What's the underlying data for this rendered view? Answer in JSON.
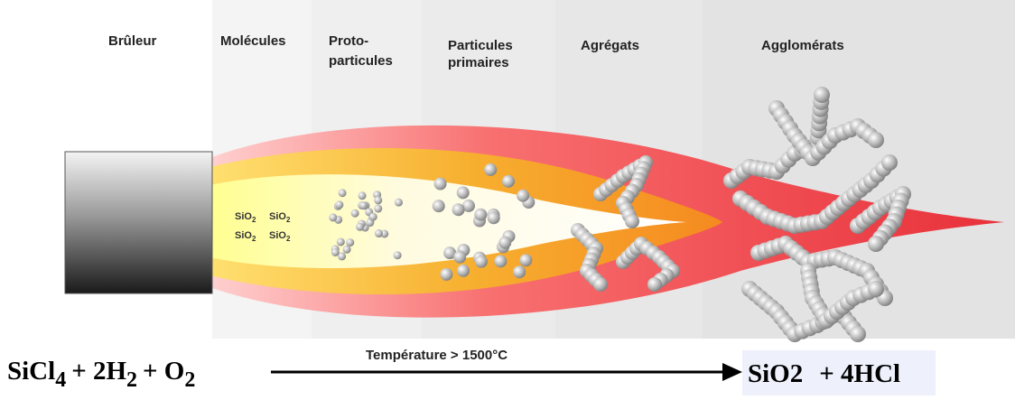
{
  "columns": [
    {
      "lines": [
        "Brûleur"
      ]
    },
    {
      "lines": [
        "Molécules"
      ]
    },
    {
      "lines": [
        "Proto-",
        "particules"
      ]
    },
    {
      "lines": [
        "Particules",
        "primaires"
      ]
    },
    {
      "lines": [
        "Agrégats"
      ]
    },
    {
      "lines": [
        "Agglomérats"
      ]
    }
  ],
  "molecules": [
    {
      "text": "SiO",
      "sub": "2"
    },
    {
      "text": "SiO",
      "sub": "2"
    },
    {
      "text": "SiO",
      "sub": "2"
    },
    {
      "text": "SiO",
      "sub": "2"
    }
  ],
  "equation": {
    "reactants": [
      {
        "text": "SiCl",
        "sub": "4"
      },
      {
        "text": "+ 2H",
        "sub": "2"
      },
      {
        "text": "+ O",
        "sub": "2"
      }
    ],
    "condition": "Température > 1500°C",
    "products": [
      "SiO2",
      "+ 4HCl"
    ]
  }
}
